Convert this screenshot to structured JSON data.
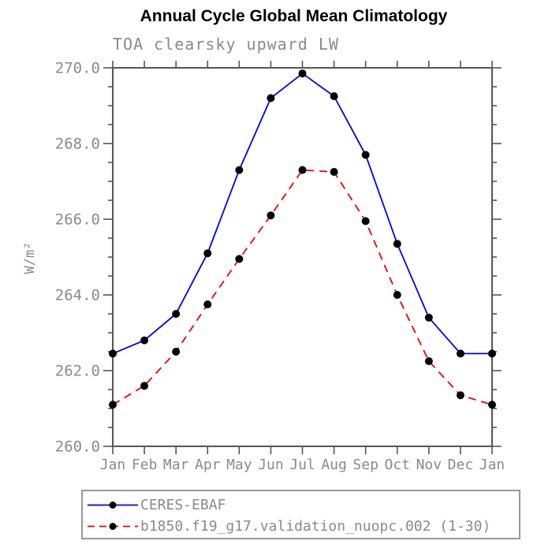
{
  "chart_data": {
    "type": "line",
    "title": "Annual Cycle Global Mean Climatology",
    "subtitle": "TOA clearsky upward LW",
    "ylabel": "W/m²",
    "xlabel": "",
    "categories": [
      "Jan",
      "Feb",
      "Mar",
      "Apr",
      "May",
      "Jun",
      "Jul",
      "Aug",
      "Sep",
      "Oct",
      "Nov",
      "Dec",
      "Jan"
    ],
    "ylim": [
      260.0,
      270.0
    ],
    "ytick_major": 2.0,
    "ytick_minor": 0.5,
    "ytick_labels": [
      "260.0",
      "262.0",
      "264.0",
      "266.0",
      "268.0",
      "270.0"
    ],
    "grid": false,
    "legend_position": "bottom-left-box",
    "axis_color": "#555555",
    "label_color": "#8a8a8a",
    "legend_border_color": "#999999",
    "marker_shape": "filled-circle",
    "series": [
      {
        "name": "CERES-EBAF",
        "color": "#0000ee",
        "style": "solid",
        "marker_color": "#000000",
        "values": [
          262.45,
          262.8,
          263.5,
          265.1,
          267.3,
          269.2,
          269.85,
          269.25,
          267.7,
          265.35,
          263.4,
          262.45,
          262.45
        ]
      },
      {
        "name": "b1850.f19_g17.validation_nuopc.002 (1-30)",
        "color": "#ee0000",
        "style": "dashed",
        "marker_color": "#000000",
        "values": [
          261.1,
          261.6,
          262.5,
          263.75,
          264.95,
          266.1,
          267.3,
          267.25,
          265.95,
          264.0,
          262.25,
          261.35,
          261.1
        ]
      }
    ]
  }
}
